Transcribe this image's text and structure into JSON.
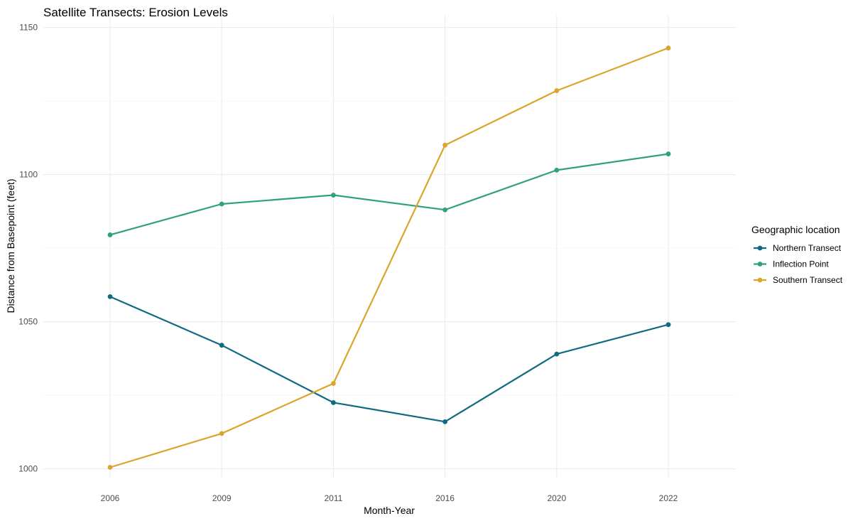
{
  "chart_data": {
    "type": "line",
    "title": "Satellite Transects: Erosion Levels",
    "xlabel": "Month-Year",
    "ylabel": "Distance from Basepoint (feet)",
    "categories": [
      "2006",
      "2009",
      "2011",
      "2016",
      "2020",
      "2022"
    ],
    "ylim": [
      997,
      1154
    ],
    "yticks": [
      1000,
      1050,
      1100,
      1150
    ],
    "yticks_minor": [
      1025,
      1075,
      1125
    ],
    "grid": true,
    "legend": {
      "title": "Geographic location",
      "position": "right"
    },
    "series": [
      {
        "name": "Northern Transect",
        "color": "#0f6a82",
        "values": [
          1058.5,
          1042,
          1022.5,
          1016,
          1039,
          1049
        ]
      },
      {
        "name": "Inflection Point",
        "color": "#2fa17d",
        "values": [
          1079.5,
          1090,
          1093,
          1088,
          1101.5,
          1107
        ]
      },
      {
        "name": "Southern Transect",
        "color": "#d9a52b",
        "values": [
          1000.5,
          1012,
          1029,
          1110,
          1128.5,
          1143
        ]
      }
    ]
  }
}
